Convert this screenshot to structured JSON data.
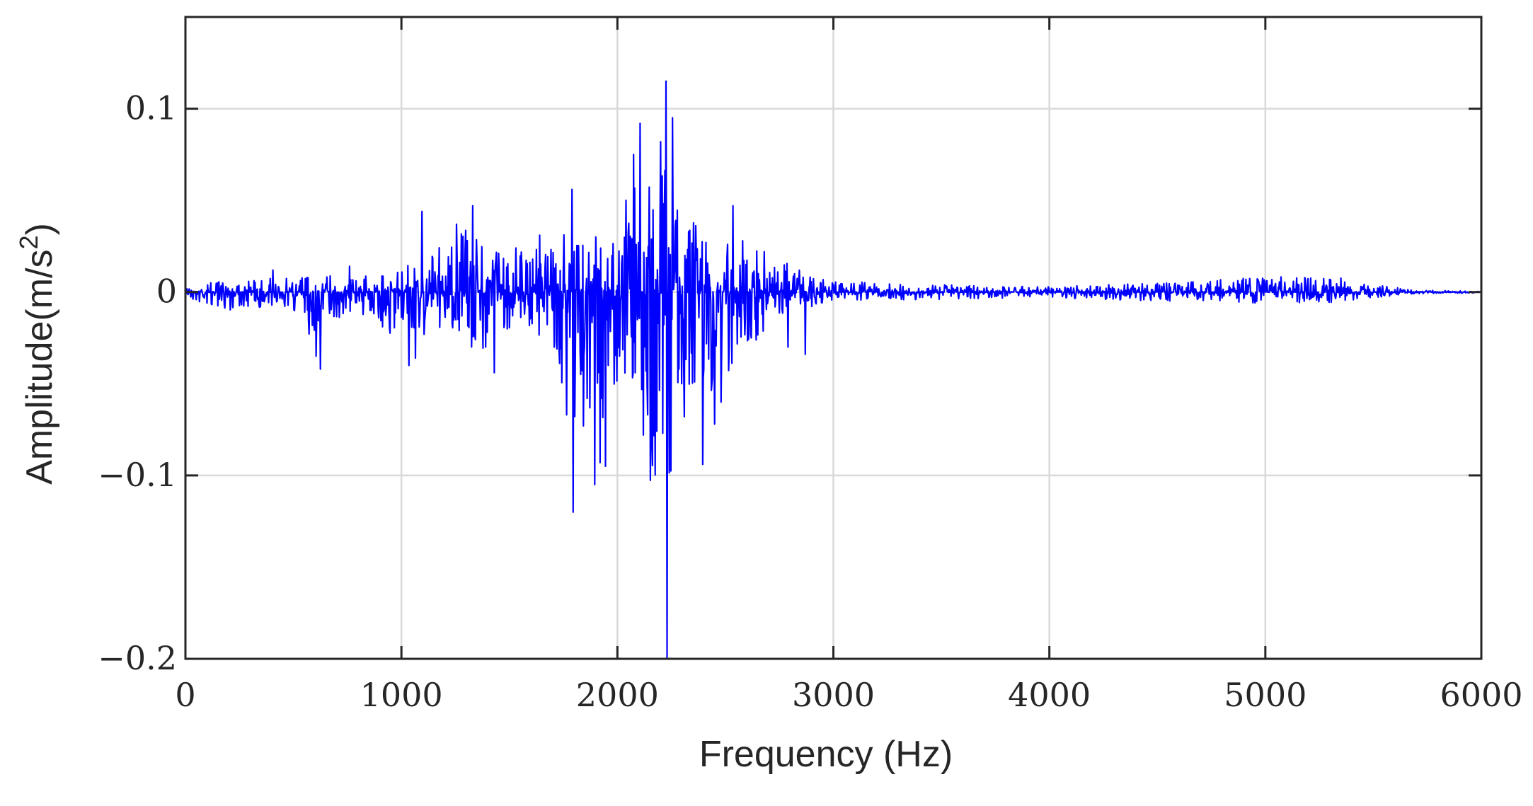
{
  "chart_data": {
    "type": "line",
    "xlabel": "Frequency (Hz)",
    "ylabel_base": "Amplitude(m/s",
    "ylabel_superscript": "2",
    "ylabel_close": ")",
    "xlim": [
      0,
      6000
    ],
    "ylim": [
      -0.2,
      0.15
    ],
    "xticks": [
      0,
      1000,
      2000,
      3000,
      4000,
      5000,
      6000
    ],
    "xtick_labels": [
      "0",
      "1000",
      "2000",
      "3000",
      "4000",
      "5000",
      "6000"
    ],
    "yticks": [
      -0.2,
      -0.1,
      0,
      0.1
    ],
    "ytick_labels": [
      "−0.2",
      "−0.1",
      "0",
      "0.1"
    ],
    "grid": true,
    "series": [
      {
        "color": "#0000ff",
        "envelope": [
          [
            0,
            0.003,
            -0.003
          ],
          [
            100,
            0.006,
            -0.008
          ],
          [
            200,
            0.006,
            -0.01
          ],
          [
            300,
            0.007,
            -0.008
          ],
          [
            400,
            0.009,
            -0.009
          ],
          [
            500,
            0.008,
            -0.01
          ],
          [
            600,
            0.012,
            -0.03
          ],
          [
            700,
            0.012,
            -0.015
          ],
          [
            800,
            0.009,
            -0.01
          ],
          [
            900,
            0.009,
            -0.02
          ],
          [
            1000,
            0.012,
            -0.035
          ],
          [
            1100,
            0.03,
            -0.025
          ],
          [
            1200,
            0.025,
            -0.02
          ],
          [
            1300,
            0.035,
            -0.04
          ],
          [
            1400,
            0.03,
            -0.03
          ],
          [
            1500,
            0.022,
            -0.02
          ],
          [
            1600,
            0.025,
            -0.02
          ],
          [
            1700,
            0.025,
            -0.03
          ],
          [
            1800,
            0.04,
            -0.08
          ],
          [
            1900,
            0.025,
            -0.08
          ],
          [
            2000,
            0.03,
            -0.05
          ],
          [
            2100,
            0.07,
            -0.06
          ],
          [
            2200,
            0.08,
            -0.15
          ],
          [
            2300,
            0.06,
            -0.06
          ],
          [
            2400,
            0.035,
            -0.06
          ],
          [
            2500,
            0.035,
            -0.05
          ],
          [
            2600,
            0.025,
            -0.03
          ],
          [
            2700,
            0.02,
            -0.025
          ],
          [
            2800,
            0.015,
            -0.015
          ],
          [
            2900,
            0.008,
            -0.008
          ],
          [
            3000,
            0.006,
            -0.005
          ],
          [
            3500,
            0.004,
            -0.004
          ],
          [
            4000,
            0.003,
            -0.003
          ],
          [
            4500,
            0.005,
            -0.005
          ],
          [
            5000,
            0.008,
            -0.006
          ],
          [
            5300,
            0.009,
            -0.006
          ],
          [
            5500,
            0.004,
            -0.003
          ],
          [
            5700,
            0.001,
            -0.001
          ],
          [
            6000,
            0.0005,
            -0.0005
          ]
        ],
        "spikes": [
          [
            2225,
            0.115
          ],
          [
            2230,
            -0.2
          ],
          [
            2105,
            0.092
          ],
          [
            2075,
            0.075
          ],
          [
            2200,
            0.082
          ],
          [
            2255,
            0.095
          ],
          [
            1790,
            0.056
          ],
          [
            1795,
            -0.12
          ],
          [
            1765,
            -0.067
          ],
          [
            1895,
            -0.105
          ],
          [
            1920,
            -0.093
          ],
          [
            1945,
            -0.095
          ],
          [
            2120,
            -0.078
          ],
          [
            2160,
            -0.08
          ],
          [
            2310,
            -0.068
          ],
          [
            2395,
            -0.094
          ],
          [
            2450,
            -0.072
          ],
          [
            2480,
            -0.06
          ],
          [
            2535,
            0.047
          ],
          [
            2580,
            0.028
          ],
          [
            2870,
            -0.034
          ],
          [
            1095,
            0.044
          ],
          [
            1330,
            0.047
          ],
          [
            1255,
            0.037
          ],
          [
            1530,
            0.024
          ],
          [
            1640,
            0.031
          ],
          [
            1430,
            -0.044
          ],
          [
            1390,
            -0.03
          ],
          [
            1065,
            -0.036
          ],
          [
            1035,
            -0.04
          ],
          [
            625,
            -0.042
          ],
          [
            605,
            -0.035
          ],
          [
            405,
            0.012
          ],
          [
            760,
            0.014
          ],
          [
            860,
            -0.01
          ],
          [
            2040,
            0.05
          ],
          [
            2330,
            0.033
          ],
          [
            2680,
            0.022
          ],
          [
            2790,
            -0.03
          ],
          [
            2620,
            -0.025
          ],
          [
            1900,
            0.03
          ],
          [
            1860,
            -0.058
          ]
        ]
      }
    ]
  }
}
